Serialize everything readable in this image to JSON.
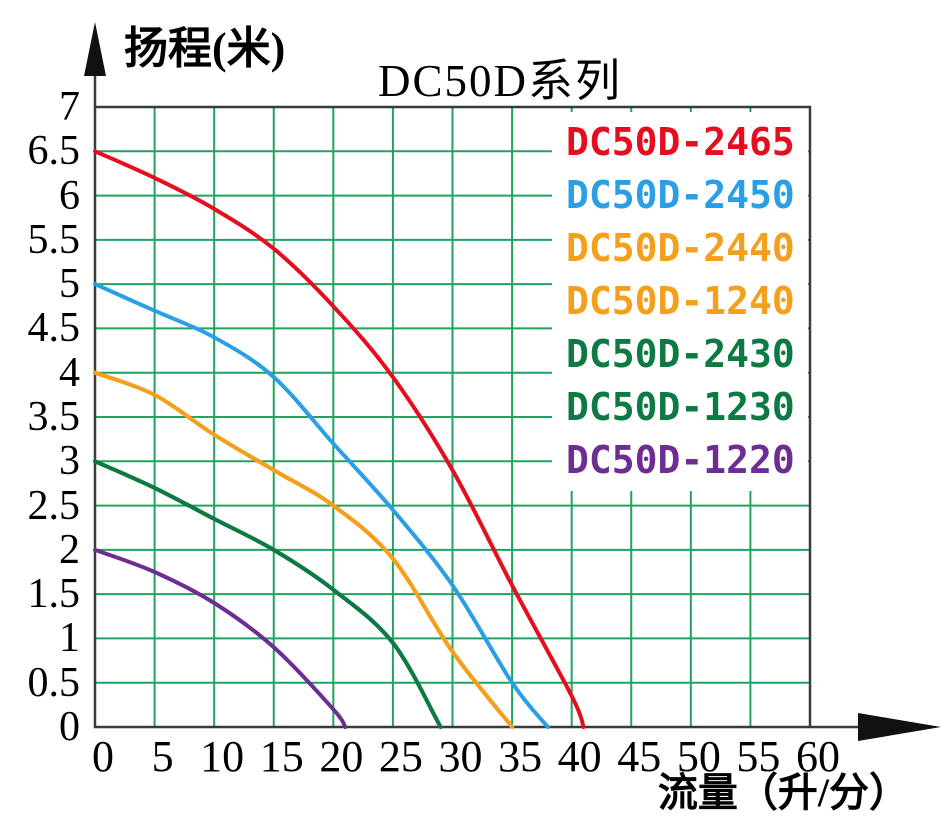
{
  "chart_data": {
    "type": "line",
    "title": "DC50D系列",
    "ylabel": "扬程(米)",
    "xlabel": "流量（升/分）",
    "xlim": [
      0,
      60
    ],
    "ylim": [
      0,
      7
    ],
    "xticks": [
      0,
      5,
      10,
      15,
      20,
      25,
      30,
      35,
      40,
      45,
      50,
      55,
      60
    ],
    "yticks": [
      0,
      0.5,
      1,
      1.5,
      2,
      2.5,
      3,
      3.5,
      4,
      4.5,
      5,
      5.5,
      6,
      6.5,
      7
    ],
    "grid": "on",
    "legend_position": "top-right",
    "colors": {
      "grid": "#1fa35f",
      "axis": "#3b3b3b",
      "red": "#e60e1e",
      "blue": "#2b9fe5",
      "orange": "#f5a01d",
      "green": "#0e7a43",
      "purple": "#6e2d92"
    },
    "series": [
      {
        "name": "DC50D-2465",
        "color": "#e60e1e",
        "points": [
          [
            0,
            6.5
          ],
          [
            5,
            6.2
          ],
          [
            10,
            5.85
          ],
          [
            15,
            5.4
          ],
          [
            20,
            4.75
          ],
          [
            25,
            3.95
          ],
          [
            30,
            2.9
          ],
          [
            35,
            1.6
          ],
          [
            40,
            0.35
          ],
          [
            41,
            0
          ]
        ]
      },
      {
        "name": "DC50D-2450",
        "color": "#2b9fe5",
        "points": [
          [
            0,
            5.0
          ],
          [
            5,
            4.7
          ],
          [
            10,
            4.4
          ],
          [
            15,
            3.95
          ],
          [
            20,
            3.2
          ],
          [
            25,
            2.45
          ],
          [
            30,
            1.6
          ],
          [
            35,
            0.5
          ],
          [
            38,
            0
          ]
        ]
      },
      {
        "name": "DC50D-2440",
        "color": "#f5a01d",
        "points": [
          [
            0,
            4.0
          ],
          [
            5,
            3.75
          ],
          [
            10,
            3.3
          ],
          [
            15,
            2.9
          ],
          [
            20,
            2.5
          ],
          [
            25,
            1.9
          ],
          [
            30,
            0.85
          ],
          [
            35,
            0
          ]
        ]
      },
      {
        "name": "DC50D-1240",
        "color": "#f5a01d",
        "points": [
          [
            0,
            4.0
          ],
          [
            5,
            3.75
          ],
          [
            10,
            3.3
          ],
          [
            15,
            2.9
          ],
          [
            20,
            2.5
          ],
          [
            25,
            1.9
          ],
          [
            30,
            0.85
          ],
          [
            35,
            0
          ]
        ]
      },
      {
        "name": "DC50D-2430",
        "color": "#0e7a43",
        "points": [
          [
            0,
            3.0
          ],
          [
            5,
            2.7
          ],
          [
            10,
            2.35
          ],
          [
            15,
            2.0
          ],
          [
            20,
            1.55
          ],
          [
            25,
            0.95
          ],
          [
            29,
            0
          ]
        ]
      },
      {
        "name": "DC50D-1230",
        "color": "#0e7a43",
        "points": [
          [
            0,
            3.0
          ],
          [
            5,
            2.7
          ],
          [
            10,
            2.35
          ],
          [
            15,
            2.0
          ],
          [
            20,
            1.55
          ],
          [
            25,
            0.95
          ],
          [
            29,
            0
          ]
        ]
      },
      {
        "name": "DC50D-1220",
        "color": "#6e2d92",
        "points": [
          [
            0,
            2.0
          ],
          [
            5,
            1.75
          ],
          [
            10,
            1.4
          ],
          [
            15,
            0.9
          ],
          [
            20,
            0.2
          ],
          [
            21,
            0
          ]
        ]
      }
    ]
  }
}
